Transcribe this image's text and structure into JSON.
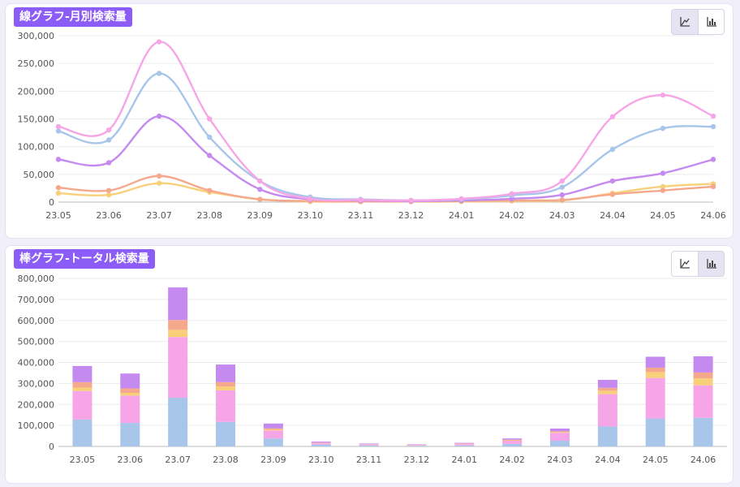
{
  "charts": {
    "line": {
      "title": "線グラフ-月別検索量",
      "toggle_active": "line"
    },
    "bar": {
      "title": "棒グラフ-トータル検索量",
      "toggle_active": "bar"
    }
  },
  "icons": {
    "line_toggle": "line-chart-icon",
    "bar_toggle": "bar-chart-icon"
  },
  "chart_data": [
    {
      "type": "line",
      "title": "線グラフ-月別検索量",
      "categories": [
        "23.05",
        "23.06",
        "23.07",
        "23.08",
        "23.09",
        "23.10",
        "23.11",
        "23.12",
        "24.01",
        "24.02",
        "24.03",
        "24.04",
        "24.05",
        "24.06"
      ],
      "ylim": [
        0,
        300000
      ],
      "yticks": [
        0,
        50000,
        100000,
        150000,
        200000,
        250000,
        300000
      ],
      "grid": true,
      "series": [
        {
          "color": "#f6a6e6",
          "values": [
            136000,
            130000,
            289000,
            150000,
            38000,
            6000,
            4000,
            3000,
            6000,
            15000,
            38000,
            154000,
            193000,
            155000
          ]
        },
        {
          "color": "#a8c5ea",
          "values": [
            128000,
            112000,
            232000,
            117000,
            38000,
            9000,
            5000,
            3000,
            5000,
            12000,
            27000,
            95000,
            133000,
            136000
          ]
        },
        {
          "color": "#c58af0",
          "values": [
            77000,
            71000,
            155000,
            84000,
            23000,
            5000,
            3000,
            2000,
            3000,
            6000,
            13000,
            38000,
            52000,
            77000
          ]
        },
        {
          "color": "#f5a88c",
          "values": [
            26000,
            21000,
            47000,
            21000,
            5000,
            2000,
            1000,
            1000,
            2000,
            3000,
            4000,
            14000,
            21000,
            28000
          ]
        },
        {
          "color": "#f8d07a",
          "values": [
            16000,
            13000,
            34000,
            18000,
            5000,
            1000,
            1000,
            1000,
            1000,
            2000,
            3000,
            16000,
            28000,
            33000
          ]
        }
      ]
    },
    {
      "type": "bar",
      "stacked": true,
      "title": "棒グラフ-トータル検索量",
      "categories": [
        "23.05",
        "23.06",
        "23.07",
        "23.08",
        "23.09",
        "23.10",
        "23.11",
        "23.12",
        "24.01",
        "24.02",
        "24.03",
        "24.04",
        "24.05",
        "24.06"
      ],
      "ylim": [
        0,
        800000
      ],
      "yticks": [
        0,
        100000,
        200000,
        300000,
        400000,
        500000,
        600000,
        700000,
        800000
      ],
      "grid": true,
      "series": [
        {
          "color": "#a8c5ea",
          "values": [
            128000,
            112000,
            232000,
            117000,
            38000,
            9000,
            5000,
            3000,
            5000,
            12000,
            27000,
            95000,
            133000,
            136000
          ]
        },
        {
          "color": "#f6a6e6",
          "values": [
            136000,
            130000,
            289000,
            150000,
            38000,
            6000,
            4000,
            3000,
            6000,
            15000,
            38000,
            154000,
            193000,
            155000
          ]
        },
        {
          "color": "#f8d07a",
          "values": [
            16000,
            13000,
            34000,
            18000,
            5000,
            1000,
            1000,
            1000,
            1000,
            2000,
            3000,
            16000,
            28000,
            33000
          ]
        },
        {
          "color": "#f5a88c",
          "values": [
            26000,
            21000,
            47000,
            21000,
            5000,
            2000,
            1000,
            1000,
            2000,
            3000,
            4000,
            14000,
            21000,
            28000
          ]
        },
        {
          "color": "#c58af0",
          "values": [
            77000,
            71000,
            155000,
            84000,
            23000,
            5000,
            3000,
            2000,
            3000,
            6000,
            13000,
            38000,
            52000,
            77000
          ]
        }
      ]
    }
  ]
}
